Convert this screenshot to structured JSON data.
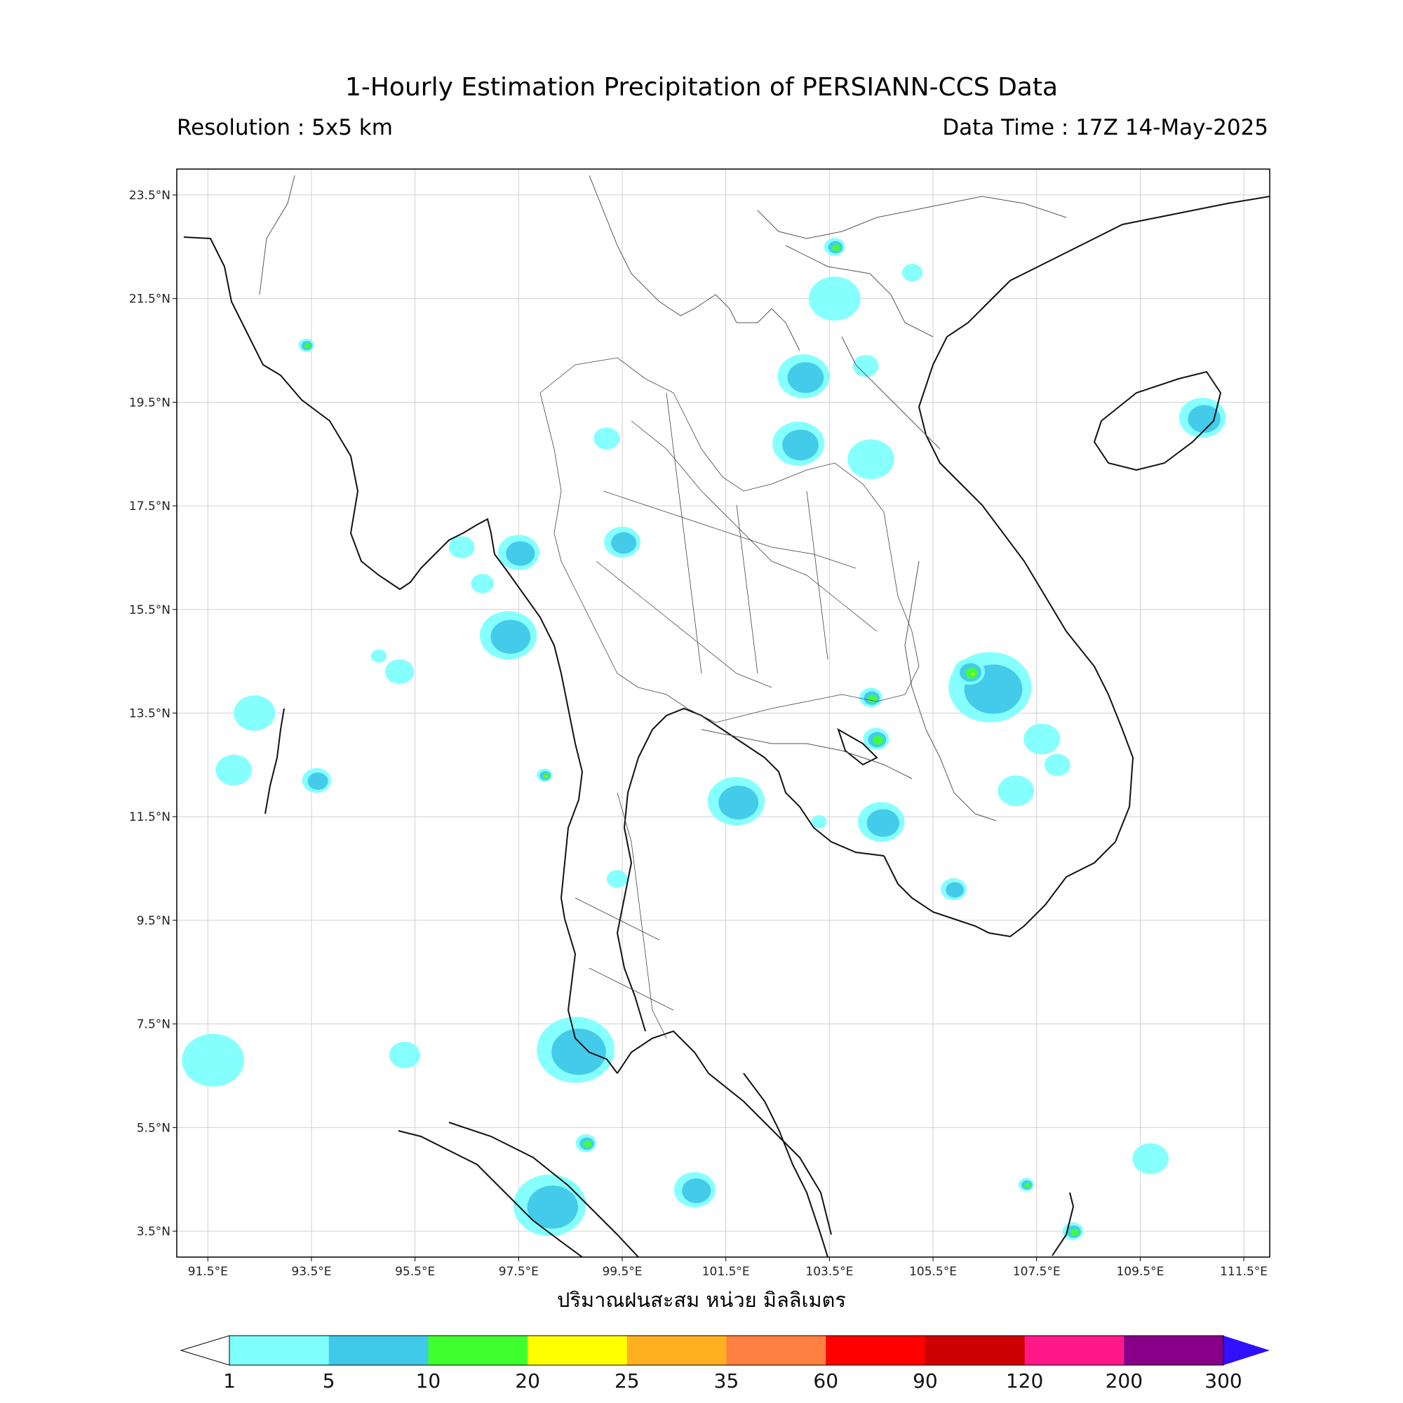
{
  "title": "1-Hourly Estimation Precipitation of PERSIANN-CCS Data",
  "resolution": "Resolution : 5x5 km",
  "data_time": "Data Time : 17Z 14-May-2025",
  "x_axis_label": "ปริมาณฝนสะสม หน่วย มิลลิเมตร",
  "lat_ticks": [
    "23.5°N",
    "21.5°N",
    "19.5°N",
    "17.5°N",
    "15.5°N",
    "13.5°N",
    "11.5°N",
    "9.5°N",
    "7.5°N",
    "5.5°N",
    "3.5°N"
  ],
  "lon_ticks": [
    "91.5°E",
    "93.5°E",
    "95.5°E",
    "97.5°E",
    "99.5°E",
    "101.5°E",
    "103.5°E",
    "105.5°E",
    "107.5°E",
    "109.5°E",
    "111.5°E"
  ],
  "extent": {
    "lon_min": 90.9,
    "lon_max": 112.0,
    "lat_min": 3.0,
    "lat_max": 24.0
  },
  "colorbar": {
    "labels": [
      "1",
      "5",
      "10",
      "20",
      "25",
      "35",
      "60",
      "90",
      "120",
      "200",
      "300"
    ],
    "colors": [
      "#80ffff",
      "#40c8e8",
      "#40ff30",
      "#ffff00",
      "#ffb020",
      "#ff8040",
      "#ff0000",
      "#cc0000",
      "#ff1888",
      "#880088"
    ],
    "over_color": "#3010ff",
    "under_color": "#ffffff"
  },
  "rain_cells": [
    {
      "lon": 95.2,
      "lat": 14.3,
      "r": 0.28,
      "level": 1
    },
    {
      "lon": 94.8,
      "lat": 14.6,
      "r": 0.15,
      "level": 1
    },
    {
      "lon": 97.3,
      "lat": 15.0,
      "r": 0.55,
      "level": 2
    },
    {
      "lon": 97.5,
      "lat": 16.6,
      "r": 0.4,
      "level": 2
    },
    {
      "lon": 96.4,
      "lat": 16.7,
      "r": 0.25,
      "level": 1
    },
    {
      "lon": 96.8,
      "lat": 16.0,
      "r": 0.22,
      "level": 1
    },
    {
      "lon": 98.6,
      "lat": 7.0,
      "r": 0.75,
      "level": 2
    },
    {
      "lon": 98.1,
      "lat": 4.0,
      "r": 0.7,
      "level": 2
    },
    {
      "lon": 92.0,
      "lat": 12.4,
      "r": 0.35,
      "level": 1
    },
    {
      "lon": 92.4,
      "lat": 13.5,
      "r": 0.4,
      "level": 1
    },
    {
      "lon": 93.6,
      "lat": 12.2,
      "r": 0.28,
      "level": 2
    },
    {
      "lon": 91.6,
      "lat": 6.8,
      "r": 0.6,
      "level": 1
    },
    {
      "lon": 95.3,
      "lat": 6.9,
      "r": 0.3,
      "level": 1
    },
    {
      "lon": 101.7,
      "lat": 11.8,
      "r": 0.55,
      "level": 2
    },
    {
      "lon": 103.3,
      "lat": 11.4,
      "r": 0.15,
      "level": 1
    },
    {
      "lon": 104.5,
      "lat": 11.4,
      "r": 0.45,
      "level": 2
    },
    {
      "lon": 104.4,
      "lat": 13.0,
      "r": 0.25,
      "level": 3
    },
    {
      "lon": 104.3,
      "lat": 13.8,
      "r": 0.22,
      "level": 3
    },
    {
      "lon": 106.6,
      "lat": 14.0,
      "r": 0.8,
      "level": 2
    },
    {
      "lon": 106.2,
      "lat": 14.3,
      "r": 0.3,
      "level": 4
    },
    {
      "lon": 107.6,
      "lat": 13.0,
      "r": 0.35,
      "level": 1
    },
    {
      "lon": 107.1,
      "lat": 12.0,
      "r": 0.35,
      "level": 1
    },
    {
      "lon": 107.9,
      "lat": 12.5,
      "r": 0.25,
      "level": 1
    },
    {
      "lon": 102.9,
      "lat": 18.7,
      "r": 0.5,
      "level": 2
    },
    {
      "lon": 104.3,
      "lat": 18.4,
      "r": 0.45,
      "level": 1
    },
    {
      "lon": 103.0,
      "lat": 20.0,
      "r": 0.5,
      "level": 2
    },
    {
      "lon": 103.6,
      "lat": 21.5,
      "r": 0.5,
      "level": 1
    },
    {
      "lon": 104.2,
      "lat": 20.2,
      "r": 0.25,
      "level": 1
    },
    {
      "lon": 99.5,
      "lat": 16.8,
      "r": 0.35,
      "level": 2
    },
    {
      "lon": 99.2,
      "lat": 18.8,
      "r": 0.25,
      "level": 1
    },
    {
      "lon": 110.7,
      "lat": 19.2,
      "r": 0.45,
      "level": 2
    },
    {
      "lon": 105.9,
      "lat": 10.1,
      "r": 0.25,
      "level": 2
    },
    {
      "lon": 100.9,
      "lat": 4.3,
      "r": 0.4,
      "level": 2
    },
    {
      "lon": 98.8,
      "lat": 5.2,
      "r": 0.2,
      "level": 3
    },
    {
      "lon": 109.7,
      "lat": 4.9,
      "r": 0.35,
      "level": 1
    },
    {
      "lon": 107.3,
      "lat": 4.4,
      "r": 0.15,
      "level": 3
    },
    {
      "lon": 108.2,
      "lat": 3.5,
      "r": 0.2,
      "level": 3
    },
    {
      "lon": 93.4,
      "lat": 20.6,
      "r": 0.15,
      "level": 3
    },
    {
      "lon": 99.4,
      "lat": 10.3,
      "r": 0.2,
      "level": 1
    },
    {
      "lon": 103.6,
      "lat": 22.5,
      "r": 0.2,
      "level": 3
    },
    {
      "lon": 105.1,
      "lat": 22.0,
      "r": 0.2,
      "level": 1
    },
    {
      "lon": 98.0,
      "lat": 12.3,
      "r": 0.15,
      "level": 4
    }
  ]
}
